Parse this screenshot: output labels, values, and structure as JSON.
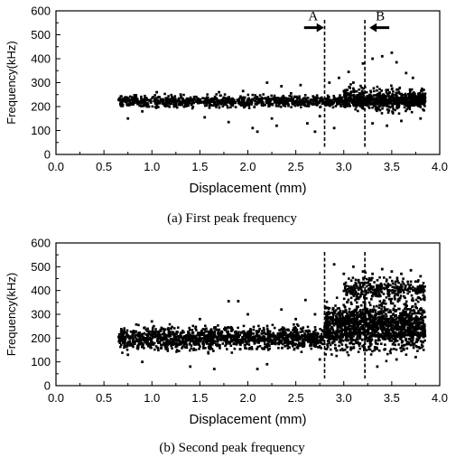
{
  "colors": {
    "ink": "#000000",
    "background": "#ffffff"
  },
  "chart_data": [
    {
      "type": "scatter",
      "caption": "(a) First peak frequency",
      "xlabel": "Displacement (mm)",
      "ylabel": "Frequency(kHz)",
      "xlim": [
        0.0,
        4.0
      ],
      "ylim": [
        0,
        600
      ],
      "x_ticks": [
        "0.0",
        "0.5",
        "1.0",
        "1.5",
        "2.0",
        "2.5",
        "3.0",
        "3.5",
        "4.0"
      ],
      "y_ticks": [
        "0",
        "100",
        "200",
        "300",
        "400",
        "500",
        "600"
      ],
      "grid": false,
      "dashed_lines_x": [
        2.8,
        3.22
      ],
      "annotations": [
        {
          "text": "A",
          "x": 2.68,
          "y": 545,
          "arrow": "right"
        },
        {
          "text": "B",
          "x": 3.38,
          "y": 545,
          "arrow": "left"
        }
      ],
      "density_bands": [
        {
          "x_range": [
            0.65,
            3.85
          ],
          "center": 222,
          "spread": 16,
          "count": 1300
        },
        {
          "x_range": [
            3.0,
            3.85
          ],
          "center": 232,
          "spread": 32,
          "count": 500
        }
      ],
      "scattered_points": [
        [
          0.75,
          150
        ],
        [
          0.9,
          180
        ],
        [
          1.05,
          260
        ],
        [
          1.3,
          250
        ],
        [
          1.55,
          155
        ],
        [
          1.8,
          135
        ],
        [
          1.95,
          265
        ],
        [
          2.05,
          110
        ],
        [
          2.1,
          95
        ],
        [
          2.25,
          150
        ],
        [
          2.35,
          285
        ],
        [
          2.45,
          255
        ],
        [
          2.55,
          290
        ],
        [
          2.62,
          130
        ],
        [
          2.7,
          95
        ],
        [
          2.75,
          160
        ],
        [
          2.85,
          300
        ],
        [
          2.9,
          110
        ],
        [
          2.95,
          320
        ],
        [
          3.05,
          345
        ],
        [
          3.1,
          300
        ],
        [
          3.2,
          380
        ],
        [
          3.3,
          400
        ],
        [
          3.4,
          410
        ],
        [
          3.5,
          425
        ],
        [
          3.55,
          385
        ],
        [
          3.65,
          340
        ],
        [
          3.72,
          320
        ],
        [
          3.8,
          150
        ],
        [
          3.3,
          130
        ],
        [
          3.45,
          120
        ],
        [
          3.6,
          140
        ],
        [
          2.3,
          120
        ],
        [
          1.7,
          260
        ],
        [
          2.2,
          300
        ]
      ]
    },
    {
      "type": "scatter",
      "caption": "(b) Second peak frequency",
      "xlabel": "Displacement (mm)",
      "ylabel": "Frequency(kHz)",
      "xlim": [
        0.0,
        4.0
      ],
      "ylim": [
        0,
        600
      ],
      "x_ticks": [
        "0.0",
        "0.5",
        "1.0",
        "1.5",
        "2.0",
        "2.5",
        "3.0",
        "3.5",
        "4.0"
      ],
      "y_ticks": [
        "0",
        "100",
        "200",
        "300",
        "400",
        "500",
        "600"
      ],
      "grid": false,
      "dashed_lines_x": [
        2.8,
        3.22
      ],
      "annotations": [],
      "density_bands": [
        {
          "x_range": [
            0.65,
            2.8
          ],
          "center": 200,
          "spread": 32,
          "count": 1400
        },
        {
          "x_range": [
            2.8,
            3.85
          ],
          "center": 250,
          "spread": 65,
          "count": 1500
        },
        {
          "x_range": [
            3.0,
            3.85
          ],
          "center": 405,
          "spread": 35,
          "count": 350
        }
      ],
      "scattered_points": [
        [
          0.75,
          130
        ],
        [
          0.9,
          100
        ],
        [
          1.0,
          270
        ],
        [
          1.2,
          240
        ],
        [
          1.5,
          280
        ],
        [
          1.65,
          70
        ],
        [
          1.8,
          355
        ],
        [
          1.9,
          355
        ],
        [
          2.0,
          300
        ],
        [
          2.2,
          90
        ],
        [
          2.35,
          320
        ],
        [
          2.5,
          280
        ],
        [
          2.6,
          360
        ],
        [
          2.7,
          300
        ],
        [
          2.75,
          110
        ],
        [
          2.9,
          510
        ],
        [
          3.0,
          470
        ],
        [
          3.1,
          500
        ],
        [
          3.2,
          480
        ],
        [
          3.3,
          470
        ],
        [
          3.4,
          490
        ],
        [
          3.5,
          480
        ],
        [
          3.6,
          470
        ],
        [
          3.7,
          485
        ],
        [
          3.8,
          460
        ],
        [
          3.35,
          80
        ],
        [
          3.55,
          110
        ],
        [
          3.75,
          120
        ],
        [
          1.4,
          80
        ],
        [
          2.1,
          70
        ]
      ]
    }
  ]
}
